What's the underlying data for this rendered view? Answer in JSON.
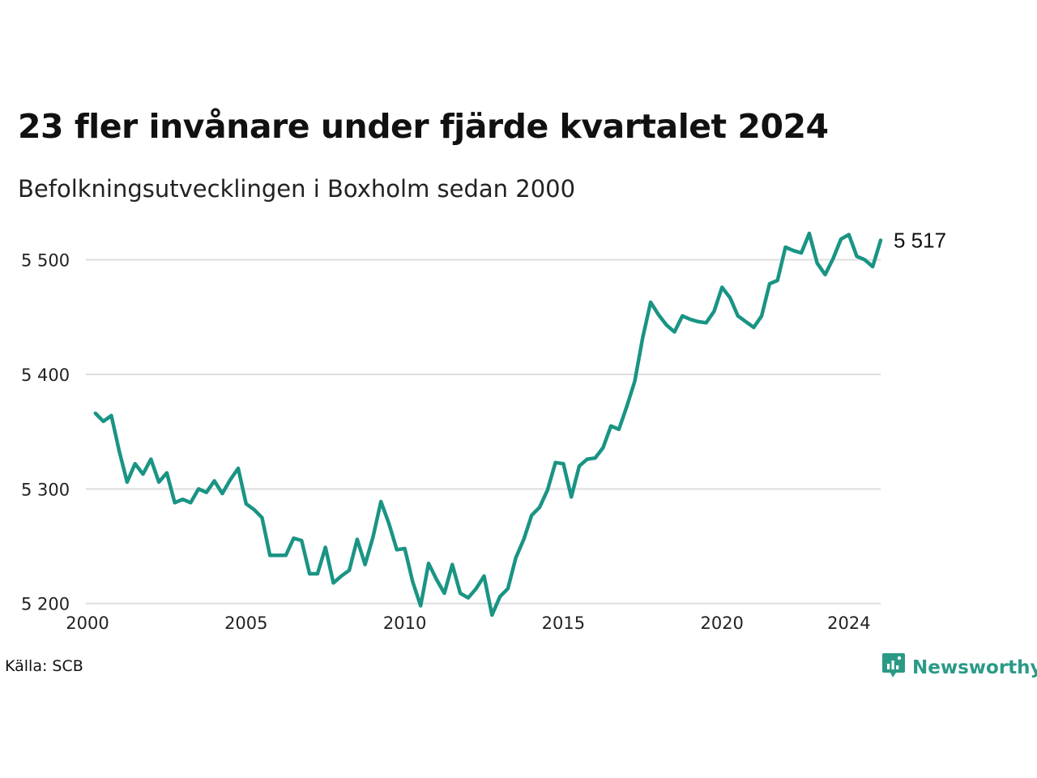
{
  "title": "23 fler invånare under fjärde kvartalet 2024",
  "subtitle": "Befolkningsutvecklingen i Boxholm sedan 2000",
  "source": "Källa: SCB",
  "brand": {
    "name": "Newsworthy",
    "icon": "newsworthy-logo-icon",
    "color": "#2a9a86"
  },
  "chart_data": {
    "type": "line",
    "title": "23 fler invånare under fjärde kvartalet 2024",
    "subtitle": "Befolkningsutvecklingen i Boxholm sedan 2000",
    "xlabel": "",
    "ylabel": "",
    "xlim": [
      2000,
      2025
    ],
    "ylim": [
      5180,
      5540
    ],
    "grid": true,
    "line_color": "#1a9484",
    "x_ticks": [
      {
        "value": 2000,
        "label": "2000"
      },
      {
        "value": 2005,
        "label": "2005"
      },
      {
        "value": 2010,
        "label": "2010"
      },
      {
        "value": 2015,
        "label": "2015"
      },
      {
        "value": 2020,
        "label": "2020"
      },
      {
        "value": 2024,
        "label": "2024"
      }
    ],
    "y_ticks": [
      {
        "value": 5200,
        "label": "5 200"
      },
      {
        "value": 5300,
        "label": "5 300"
      },
      {
        "value": 5400,
        "label": "5 400"
      },
      {
        "value": 5500,
        "label": "5 500"
      }
    ],
    "end_label": "5 517",
    "series": [
      {
        "x_start": 2000.25,
        "x_step": 0.25,
        "values": [
          5366,
          5359,
          5364,
          5333,
          5306,
          5322,
          5313,
          5326,
          5306,
          5314,
          5288,
          5291,
          5288,
          5300,
          5297,
          5307,
          5296,
          5308,
          5318,
          5287,
          5282,
          5275,
          5242,
          5242,
          5242,
          5257,
          5255,
          5226,
          5226,
          5249,
          5218,
          5224,
          5229,
          5256,
          5234,
          5258,
          5289,
          5270,
          5247,
          5248,
          5219,
          5198,
          5235,
          5221,
          5209,
          5234,
          5209,
          5205,
          5213,
          5224,
          5190,
          5206,
          5213,
          5240,
          5256,
          5277,
          5284,
          5299,
          5323,
          5322,
          5293,
          5320,
          5326,
          5327,
          5336,
          5355,
          5352,
          5372,
          5394,
          5432,
          5463,
          5452,
          5443,
          5437,
          5451,
          5448,
          5446,
          5445,
          5455,
          5476,
          5467,
          5451,
          5446,
          5441,
          5451,
          5479,
          5482,
          5511,
          5508,
          5506,
          5523,
          5497,
          5487,
          5501,
          5518,
          5522,
          5503,
          5500,
          5494,
          5517
        ]
      }
    ]
  }
}
